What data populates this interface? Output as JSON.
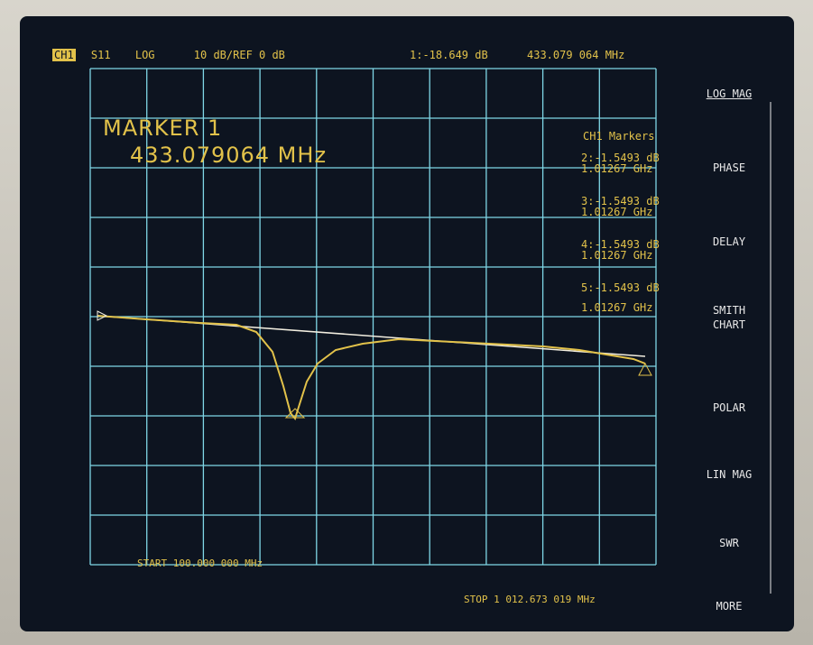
{
  "header": {
    "channel": "CH1",
    "parameter": "S11",
    "format": "LOG",
    "scale": "10 dB/REF 0 dB",
    "marker_value": "1:-18.649 dB",
    "marker_frequency": "433.079 064 MHz"
  },
  "active_marker": {
    "label": "MARKER 1",
    "frequency": "433.079064 MHz"
  },
  "markers_panel": {
    "title": "CH1 Markers",
    "entries": [
      {
        "value": "2:-1.5493 dB",
        "frequency": "1.01267 GHz"
      },
      {
        "value": "3:-1.5493 dB",
        "frequency": "1.01267 GHz"
      },
      {
        "value": "4:-1.5493 dB",
        "frequency": "1.01267 GHz"
      },
      {
        "value": "5:-1.5493 dB",
        "frequency": "1.01267 GHz"
      }
    ]
  },
  "footer": {
    "start": "START 100.000 000 MHz",
    "stop": "STOP 1 012.673 019 MHz"
  },
  "softkeys": [
    "LOG MAG",
    "PHASE",
    "DELAY",
    "SMITH CHART",
    "POLAR",
    "LIN MAG",
    "SWR",
    "MORE"
  ]
}
